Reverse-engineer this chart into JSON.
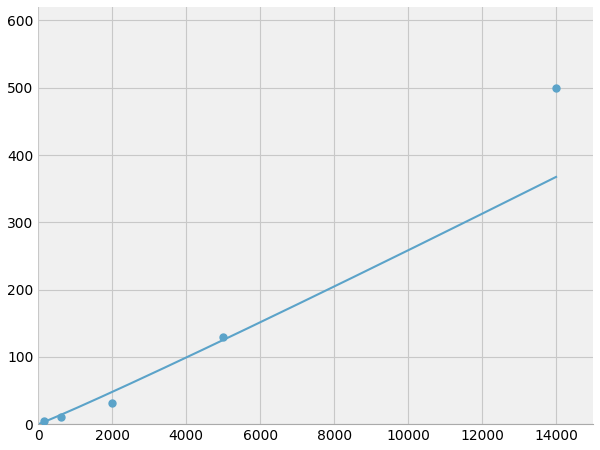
{
  "x": [
    156,
    625,
    2000,
    5000,
    14000
  ],
  "y": [
    5,
    10,
    32,
    130,
    500
  ],
  "line_color": "#5ba3c9",
  "marker_color": "#5ba3c9",
  "marker_size": 5,
  "line_width": 1.5,
  "xlim": [
    0,
    15000
  ],
  "ylim": [
    0,
    620
  ],
  "xticks": [
    0,
    2000,
    4000,
    6000,
    8000,
    10000,
    12000,
    14000
  ],
  "yticks": [
    0,
    100,
    200,
    300,
    400,
    500,
    600
  ],
  "grid_color": "#c8c8c8",
  "background_color": "#f0f0f0",
  "figure_bg": "#ffffff",
  "tick_fontsize": 10
}
